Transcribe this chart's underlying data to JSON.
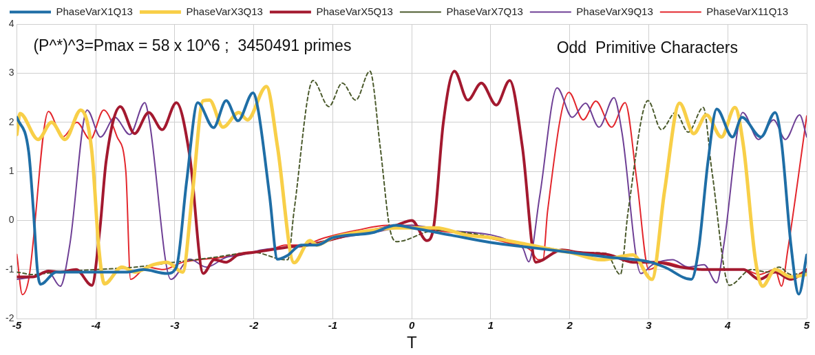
{
  "chart_data": {
    "type": "line",
    "xlabel": "T",
    "annotations": [
      "(P^*)^3=Pmax = 58 x 10^6 ;  3450491 primes",
      "Odd  Primitive Characters"
    ],
    "xlim": [
      -5,
      5
    ],
    "xticks": [
      -5,
      -4,
      -3,
      -2,
      -1,
      0,
      1,
      2,
      3,
      4,
      5
    ],
    "ylim": [
      -2,
      4
    ],
    "yticks": [
      -2,
      -1,
      0,
      1,
      2,
      3,
      4
    ],
    "grid": true,
    "legend": "top left",
    "series": [
      {
        "name": "PhaseVarX1Q13",
        "color": "#1f6ea6",
        "line_style": "solid",
        "x": [
          -5,
          -4.85,
          -4.79,
          -4.74,
          -4.7,
          -4.5,
          -4.0,
          -3.6,
          -3.4,
          -3.1,
          -2.98,
          -2.85,
          -2.71,
          -2.51,
          -2.35,
          -2.2,
          -2.01,
          -1.95,
          -1.8,
          -1.7,
          -1.58,
          -1.4,
          -1.2,
          -1.0,
          -0.5,
          -0.2,
          0,
          0.5,
          1.0,
          1.5,
          2.0,
          2.5,
          3.0,
          3.2,
          3.54,
          3.63,
          3.75,
          3.86,
          4.06,
          4.18,
          4.42,
          4.6,
          4.68,
          4.8,
          4.9,
          5
        ],
        "values": [
          2.1,
          1.4,
          0.2,
          -1.0,
          -1.3,
          -1.05,
          -1.05,
          -1.05,
          -1.0,
          -1.08,
          -0.95,
          0.8,
          2.4,
          1.89,
          2.44,
          2.03,
          2.6,
          2.3,
          0.5,
          -0.79,
          -0.72,
          -0.5,
          -0.5,
          -0.35,
          -0.25,
          -0.1,
          -0.15,
          -0.3,
          -0.45,
          -0.55,
          -0.65,
          -0.75,
          -0.84,
          -0.95,
          -1.2,
          -0.6,
          1.2,
          2.27,
          1.7,
          2.1,
          1.7,
          2.2,
          1.6,
          -0.5,
          -1.5,
          -0.7
        ]
      },
      {
        "name": "PhaseVarX3Q13",
        "color": "#f8cf48",
        "line_style": "solid",
        "x": [
          -5,
          -4.96,
          -4.73,
          -4.56,
          -4.39,
          -4.19,
          -4.05,
          -3.96,
          -3.89,
          -3.67,
          -3.5,
          -3.27,
          -3.1,
          -2.9,
          -2.78,
          -2.64,
          -2.56,
          -2.39,
          -2.19,
          -2.08,
          -1.84,
          -1.7,
          -1.49,
          -1.29,
          -1.2,
          -1.0,
          -0.5,
          -0.2,
          0,
          0.3,
          0.7,
          1.0,
          1.5,
          1.8,
          2.0,
          2.4,
          2.8,
          3.04,
          3.2,
          3.39,
          3.57,
          3.73,
          3.92,
          4.09,
          4.2,
          4.35,
          4.44,
          4.6,
          4.8,
          5
        ],
        "values": [
          1.75,
          2.18,
          1.65,
          2.0,
          1.65,
          2.25,
          1.4,
          -0.6,
          -1.29,
          -0.95,
          -1.05,
          -0.9,
          -0.85,
          -1.05,
          0.5,
          2.44,
          2.45,
          1.9,
          2.2,
          2.05,
          2.73,
          1.5,
          -0.86,
          -0.41,
          -0.5,
          -0.35,
          -0.2,
          -0.15,
          -0.15,
          -0.15,
          -0.3,
          -0.35,
          -0.5,
          -0.6,
          -0.65,
          -0.8,
          -0.7,
          -1.2,
          0.6,
          2.39,
          1.77,
          2.15,
          1.7,
          2.3,
          1.5,
          -0.8,
          -1.34,
          -1.0,
          -1.15,
          -1.1
        ]
      },
      {
        "name": "PhaseVarX5Q13",
        "color": "#a3192f",
        "line_style": "solid",
        "x": [
          -5,
          -4.8,
          -4.6,
          -4.45,
          -4.25,
          -4.05,
          -3.95,
          -3.87,
          -3.69,
          -3.51,
          -3.33,
          -3.16,
          -2.98,
          -2.81,
          -2.64,
          -2.5,
          -2.35,
          -2.2,
          -2.0,
          -1.8,
          -1.6,
          -1.3,
          -0.8,
          -0.5,
          -0.2,
          0,
          0.19,
          0.28,
          0.4,
          0.54,
          0.71,
          0.88,
          1.07,
          1.24,
          1.4,
          1.57,
          1.9,
          2.1,
          2.5,
          2.8,
          3.1,
          3.4,
          3.7,
          4.0,
          4.2,
          4.4,
          4.6,
          4.8,
          5
        ],
        "values": [
          -1.15,
          -1.15,
          -1.03,
          -1.05,
          -1.0,
          -1.32,
          -0.2,
          1.2,
          2.32,
          1.77,
          2.2,
          1.85,
          2.4,
          1.3,
          -1.08,
          -0.8,
          -0.85,
          -0.7,
          -0.65,
          -0.6,
          -0.55,
          -0.5,
          -0.3,
          -0.2,
          -0.1,
          0.0,
          -0.41,
          -0.1,
          2.0,
          3.04,
          2.45,
          2.8,
          2.35,
          2.85,
          1.5,
          -0.85,
          -0.6,
          -0.65,
          -0.7,
          -0.85,
          -0.85,
          -0.95,
          -1.0,
          -1.0,
          -1.0,
          -1.2,
          -1.05,
          -1.2,
          -1.0
        ]
      },
      {
        "name": "PhaseVarX7Q13",
        "color": "#4b5a2c",
        "line_style": "dashed",
        "x": [
          -5,
          -4.8,
          -4.5,
          -4.0,
          -3.5,
          -3.0,
          -2.5,
          -2.0,
          -1.66,
          -1.57,
          -1.49,
          -1.25,
          -1.05,
          -0.88,
          -0.71,
          -0.53,
          -0.4,
          -0.28,
          -0.19,
          0.3,
          0.7,
          1.2,
          1.7,
          2.1,
          2.46,
          2.64,
          2.74,
          2.99,
          3.16,
          3.34,
          3.5,
          3.69,
          3.8,
          4.02,
          4.3,
          4.5,
          4.65,
          4.8,
          5
        ],
        "values": [
          -1.05,
          -1.1,
          -1.05,
          -1.0,
          -0.95,
          -0.85,
          -0.75,
          -0.65,
          -0.79,
          -0.8,
          0.2,
          2.85,
          2.32,
          2.8,
          2.45,
          3.04,
          1.5,
          -0.15,
          -0.43,
          -0.2,
          -0.25,
          -0.4,
          -0.55,
          -0.65,
          -0.67,
          -1.1,
          0.2,
          2.44,
          1.85,
          2.2,
          1.8,
          2.3,
          1.0,
          -1.32,
          -1.0,
          -1.05,
          -0.95,
          -1.1,
          -1.05
        ]
      },
      {
        "name": "PhaseVarX9Q13",
        "color": "#6e3f95",
        "line_style": "solid",
        "x": [
          -5,
          -4.8,
          -4.6,
          -4.45,
          -4.33,
          -4.11,
          -3.94,
          -3.76,
          -3.57,
          -3.38,
          -3.32,
          -3.05,
          -2.81,
          -2.6,
          -2.35,
          -2.15,
          -1.9,
          -1.6,
          -1.2,
          -0.9,
          -0.5,
          -0.2,
          0,
          0.4,
          1.4,
          1.48,
          1.62,
          1.84,
          2.03,
          2.2,
          2.37,
          2.56,
          2.66,
          2.9,
          3.05,
          3.3,
          3.5,
          3.7,
          3.86,
          3.95,
          4.19,
          4.39,
          4.58,
          4.73,
          4.91,
          5
        ],
        "values": [
          -1.2,
          -1.15,
          -1.05,
          -1.34,
          -0.5,
          2.25,
          1.7,
          2.1,
          1.75,
          2.4,
          2.0,
          -1.2,
          -0.79,
          -0.95,
          -0.75,
          -0.7,
          -0.6,
          -0.55,
          -0.45,
          -0.35,
          -0.25,
          -0.15,
          -0.1,
          -0.2,
          -0.55,
          -0.84,
          0.5,
          2.7,
          2.1,
          2.39,
          1.9,
          2.5,
          1.8,
          -1.08,
          -0.9,
          -0.8,
          -0.95,
          -0.9,
          -1.27,
          -0.5,
          2.2,
          1.65,
          2.05,
          1.65,
          2.15,
          1.7
        ]
      },
      {
        "name": "PhaseVarX11Q13",
        "color": "#e3262c",
        "line_style": "solid",
        "x": [
          -5,
          -4.93,
          -4.85,
          -4.6,
          -4.42,
          -4.24,
          -4.07,
          -3.9,
          -3.73,
          -3.62,
          -3.56,
          -3.35,
          -3.15,
          -2.9,
          -2.7,
          -2.4,
          -2.1,
          -1.8,
          -1.6,
          -1.4,
          -1.1,
          -0.7,
          -0.3,
          0,
          0.3,
          0.8,
          1.2,
          1.5,
          1.6,
          1.66,
          1.72,
          1.99,
          2.17,
          2.33,
          2.53,
          2.7,
          2.85,
          3.0,
          3.2,
          3.45,
          3.8,
          4.2,
          4.4,
          4.6,
          4.68,
          4.76,
          5
        ],
        "values": [
          -0.69,
          -1.51,
          -1.2,
          2.22,
          1.7,
          2.0,
          1.65,
          2.25,
          1.7,
          1.0,
          -1.2,
          -0.95,
          -1.0,
          -0.85,
          -0.8,
          -0.75,
          -0.65,
          -0.6,
          -0.5,
          -0.5,
          -0.35,
          -0.2,
          -0.1,
          -0.1,
          -0.2,
          -0.3,
          -0.45,
          -0.6,
          -0.8,
          -0.8,
          0.2,
          2.61,
          2.05,
          2.43,
          1.9,
          2.4,
          0.8,
          -1.0,
          -0.85,
          -0.95,
          -1.0,
          -1.0,
          -1.1,
          -1.0,
          -1.34,
          -0.6,
          2.13
        ]
      }
    ]
  }
}
